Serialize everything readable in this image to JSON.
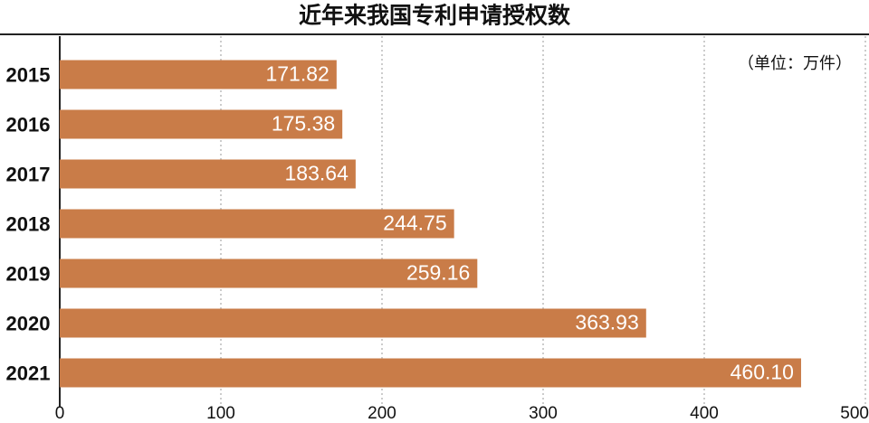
{
  "chart_data": {
    "type": "hbar",
    "title": "近年来我国专利申请授权数",
    "annotation": "（单位：万件）",
    "categories": [
      "2015",
      "2016",
      "2017",
      "2018",
      "2019",
      "2020",
      "2021"
    ],
    "values": [
      171.82,
      175.38,
      183.64,
      244.75,
      259.16,
      363.93,
      460.1
    ],
    "value_labels": [
      "171.82",
      "175.38",
      "183.64",
      "244.75",
      "259.16",
      "363.93",
      "460.10"
    ],
    "color": "#c97c48",
    "xlim": [
      0,
      500
    ],
    "xticks": [
      0,
      100,
      200,
      300,
      400,
      500
    ],
    "grid": true
  }
}
